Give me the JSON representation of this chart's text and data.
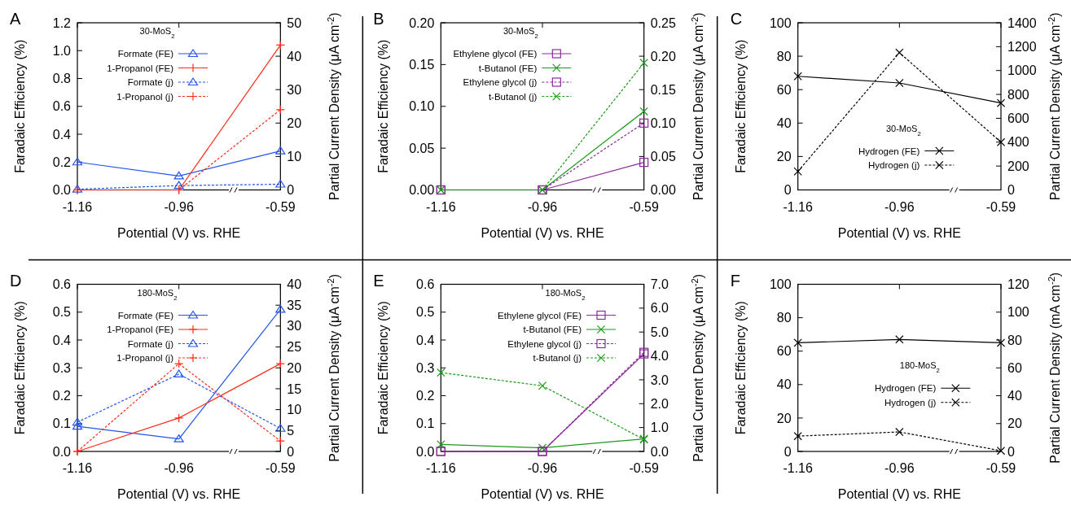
{
  "chart_data": [
    {
      "type": "line",
      "title": "A",
      "xlabel": "Potential (V) vs. RHE",
      "ylabel": "Faradaic Efficiency (%)",
      "y2label": "Partial Current Density (μA cm$^{-2}$)",
      "legend_title": "30-MoS$_{2}$",
      "legend": "top left",
      "categories": [
        "-1.16",
        "-0.96",
        "-0.59"
      ],
      "ylim": [
        0,
        1.2
      ],
      "yticks": [
        {
          "value": 0,
          "label": "0.0"
        },
        0.2,
        0.4,
        0.6,
        0.8,
        {
          "value": 1,
          "label": "1.0"
        },
        1.2
      ],
      "y2lim": [
        0,
        50
      ],
      "y2ticks": [
        0,
        10,
        20,
        30,
        40,
        50
      ],
      "series": [
        {
          "name": "Formate (FE)",
          "color": "#2255ee",
          "marker": "triangle",
          "line_style": "solid",
          "values": [
            0.2,
            0.1,
            0.28
          ]
        },
        {
          "name": "1-Propanol (FE)",
          "color": "#ff2a1a",
          "marker": "plus",
          "line_style": "solid",
          "values": [
            0,
            0,
            1.04
          ]
        },
        {
          "name": "Formate (j)",
          "color": "#2255ee",
          "marker": "triangle",
          "line_style": "dashed",
          "axis": "y2",
          "values": [
            0.2,
            1.3,
            1.7
          ]
        },
        {
          "name": "1-Propanol (j)",
          "color": "#ff2a1a",
          "marker": "plus",
          "line_style": "dashed",
          "axis": "y2",
          "values": [
            0,
            0,
            24
          ]
        }
      ]
    },
    {
      "type": "line",
      "title": "B",
      "xlabel": "Potential (V) vs. RHE",
      "ylabel": "Faradaic Efficiency (%)",
      "y2label": "Partial Current Density (μA cm$^{-2}$)",
      "legend_title": "30-MoS$_{2}$",
      "legend": "top left",
      "categories": [
        "-1.16",
        "-0.96",
        "-0.59"
      ],
      "ylim": [
        0,
        0.2
      ],
      "yticks": [
        {
          "value": 0,
          "label": "0.00"
        },
        0.05,
        {
          "value": 0.1,
          "label": "0.10"
        },
        0.15,
        {
          "value": 0.2,
          "label": "0.20"
        }
      ],
      "y2lim": [
        0,
        0.25
      ],
      "y2ticks": [
        {
          "value": 0,
          "label": "0.00"
        },
        0.05,
        {
          "value": 0.1,
          "label": "0.10"
        },
        0.15,
        {
          "value": 0.2,
          "label": "0.20"
        },
        0.25
      ],
      "series": [
        {
          "name": "Ethylene glycol (FE)",
          "color": "#8b2a9b",
          "marker": "square",
          "line_style": "solid",
          "values": [
            0,
            0,
            0.033
          ]
        },
        {
          "name": "t-Butanol (FE)",
          "color": "#1a9a1a",
          "marker": "cross",
          "line_style": "solid",
          "values": [
            0,
            0,
            0.094
          ]
        },
        {
          "name": "Ethylene glycol (j)",
          "color": "#8b2a9b",
          "marker": "square",
          "line_style": "dashed",
          "axis": "y2",
          "values": [
            0,
            0,
            0.1
          ]
        },
        {
          "name": "t-Butanol (j)",
          "color": "#1a9a1a",
          "marker": "cross",
          "line_style": "dashed",
          "axis": "y2",
          "values": [
            0,
            0,
            0.19
          ]
        }
      ]
    },
    {
      "type": "line",
      "title": "C",
      "xlabel": "Potential (V) vs. RHE",
      "ylabel": "Faradaic Efficiency (%)",
      "y2label": "Partial Current Density (μA cm$^{-2}$)",
      "legend_title": "30-MoS$_{2}$",
      "legend": "bottom",
      "categories": [
        "-1.16",
        "-0.96",
        "-0.59"
      ],
      "ylim": [
        0,
        100
      ],
      "yticks": [
        0,
        20,
        40,
        60,
        80,
        100
      ],
      "y2lim": [
        0,
        1400
      ],
      "y2ticks": [
        0,
        200,
        400,
        600,
        800,
        1000,
        1200,
        1400
      ],
      "series": [
        {
          "name": "Hydrogen (FE)",
          "color": "#000000",
          "marker": "cross",
          "line_style": "solid",
          "values": [
            68,
            64,
            52
          ]
        },
        {
          "name": "Hydrogen (j)",
          "color": "#000000",
          "marker": "cross",
          "line_style": "dashed",
          "axis": "y2",
          "values": [
            155,
            1150,
            400
          ]
        }
      ]
    },
    {
      "type": "line",
      "title": "D",
      "xlabel": "Potential (V) vs. RHE",
      "ylabel": "Faradaic Efficiency (%)",
      "y2label": "Partial Current Density (μA cm$^{-2}$)",
      "legend_title": "180-MoS$_{2}$",
      "legend": "top left",
      "categories": [
        "-1.16",
        "-0.96",
        "-0.59"
      ],
      "ylim": [
        0,
        0.6
      ],
      "yticks": [
        {
          "value": 0,
          "label": "0.0"
        },
        0.1,
        0.2,
        0.3,
        0.4,
        0.5,
        0.6
      ],
      "y2lim": [
        0,
        40
      ],
      "y2ticks": [
        0,
        5,
        10,
        15,
        20,
        25,
        30,
        35,
        40
      ],
      "series": [
        {
          "name": "Formate (FE)",
          "color": "#2255ee",
          "marker": "triangle",
          "line_style": "solid",
          "values": [
            0.09,
            0.045,
            0.51
          ]
        },
        {
          "name": "1-Propanol (FE)",
          "color": "#ff2a1a",
          "marker": "plus",
          "line_style": "solid",
          "values": [
            0,
            0.12,
            0.315
          ]
        },
        {
          "name": "Formate (j)",
          "color": "#2255ee",
          "marker": "triangle",
          "line_style": "dashed",
          "axis": "y2",
          "values": [
            7,
            18.5,
            5.5
          ]
        },
        {
          "name": "1-Propanol (j)",
          "color": "#ff2a1a",
          "marker": "plus",
          "line_style": "dashed",
          "axis": "y2",
          "values": [
            0,
            21,
            2.5
          ]
        }
      ]
    },
    {
      "type": "line",
      "title": "E",
      "xlabel": "Potential (V) vs. RHE",
      "ylabel": "Faradaic Efficiency (%)",
      "y2label": "Partial Current Density (μA cm$^{-2}$)",
      "legend_title": "180-MoS$_{2}$",
      "legend": "top",
      "categories": [
        "-1.16",
        "-0.96",
        "-0.59"
      ],
      "ylim": [
        0,
        0.6
      ],
      "yticks": [
        {
          "value": 0,
          "label": "0.0"
        },
        0.1,
        0.2,
        0.3,
        0.4,
        0.5,
        0.6
      ],
      "y2lim": [
        0,
        7
      ],
      "y2ticks": [
        {
          "value": 0,
          "label": "0.0"
        },
        {
          "value": 1,
          "label": "1.0"
        },
        {
          "value": 2,
          "label": "2.0"
        },
        {
          "value": 3,
          "label": "3.0"
        },
        {
          "value": 4,
          "label": "4.0"
        },
        {
          "value": 5,
          "label": "5.0"
        },
        {
          "value": 6,
          "label": "6.0"
        },
        {
          "value": 7,
          "label": "7.0"
        }
      ],
      "series": [
        {
          "name": "Ethylene glycol (FE)",
          "color": "#8b2a9b",
          "marker": "square",
          "line_style": "solid",
          "values": [
            0,
            0,
            0.35
          ]
        },
        {
          "name": "t-Butanol (FE)",
          "color": "#1a9a1a",
          "marker": "cross",
          "line_style": "solid",
          "values": [
            0.025,
            0.013,
            0.045
          ]
        },
        {
          "name": "Ethylene glycol (j)",
          "color": "#8b2a9b",
          "marker": "square",
          "line_style": "dashed",
          "axis": "y2",
          "values": [
            0,
            0,
            4.15
          ]
        },
        {
          "name": "t-Butanol (j)",
          "color": "#1a9a1a",
          "marker": "cross",
          "line_style": "dashed",
          "axis": "y2",
          "values": [
            3.3,
            2.75,
            0.5
          ]
        }
      ]
    },
    {
      "type": "line",
      "title": "F",
      "xlabel": "Potential (V) vs. RHE",
      "ylabel": "Faradaic Efficiency (%)",
      "y2label": "Partial Current Density (mA cm$^{-2}$)",
      "legend_title": "180-MoS$_{2}$",
      "legend": "center",
      "categories": [
        "-1.16",
        "-0.96",
        "-0.59"
      ],
      "ylim": [
        0,
        100
      ],
      "yticks": [
        0,
        20,
        40,
        60,
        80,
        100
      ],
      "y2lim": [
        0,
        120
      ],
      "y2ticks": [
        0,
        20,
        40,
        60,
        80,
        100,
        120
      ],
      "series": [
        {
          "name": "Hydrogen (FE)",
          "color": "#000000",
          "marker": "cross",
          "line_style": "solid",
          "values": [
            65,
            67,
            65
          ]
        },
        {
          "name": "Hydrogen (j)",
          "color": "#000000",
          "marker": "cross",
          "line_style": "dashed",
          "axis": "y2",
          "values": [
            11,
            14,
            0.5
          ]
        }
      ]
    }
  ]
}
